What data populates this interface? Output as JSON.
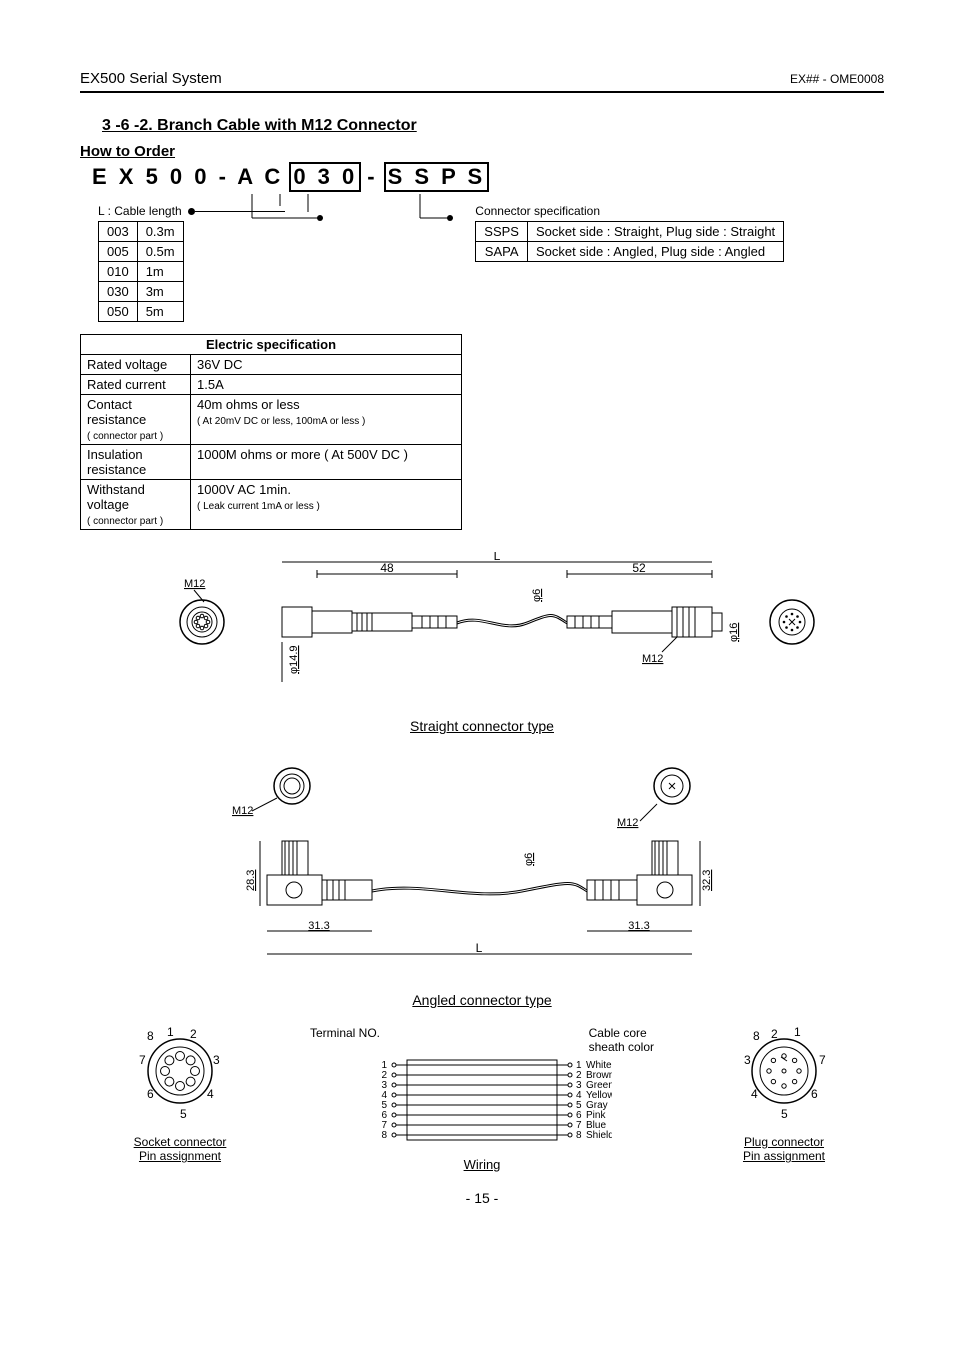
{
  "header": {
    "left": "EX500 Serial System",
    "right": "EX## - OME0008"
  },
  "section_title": "3 -6 -2. Branch Cable with M12 Connector",
  "how_to_order": "How to Order",
  "order_code": {
    "prefix": "E X 5 0 0 - A C",
    "box1": "0 3 0",
    "dash": "-",
    "box2": "S S P S"
  },
  "length_table": {
    "label": "L : Cable length",
    "rows": [
      {
        "code": "003",
        "val": "0.3m"
      },
      {
        "code": "005",
        "val": "0.5m"
      },
      {
        "code": "010",
        "val": "1m"
      },
      {
        "code": "030",
        "val": "3m"
      },
      {
        "code": "050",
        "val": "5m"
      }
    ]
  },
  "conn_table": {
    "label": "Connector specification",
    "rows": [
      {
        "code": "SSPS",
        "val": "Socket side : Straight, Plug side : Straight"
      },
      {
        "code": "SAPA",
        "val": "Socket side : Angled, Plug side : Angled"
      }
    ]
  },
  "spec_table": {
    "title": "Electric specification",
    "rows": [
      {
        "k": "Rated voltage",
        "v": "36V DC"
      },
      {
        "k": "Rated current",
        "v": "1.5A"
      },
      {
        "k": "Contact resistance",
        "ksub": "( connector part )",
        "v": "40m ohms or less",
        "vsub": "( At 20mV DC or less, 100mA or less )"
      },
      {
        "k": "Insulation resistance",
        "v": "1000M ohms or more ( At 500V DC )"
      },
      {
        "k": "Withstand voltage",
        "ksub": "( connector part )",
        "v": "1000V AC 1min.",
        "vsub": "( Leak current 1mA or less )"
      }
    ]
  },
  "diagrams": {
    "straight": {
      "label_L": "L",
      "dim_left": "48",
      "dim_right": "52",
      "m12": "M12",
      "phi6": "φ6",
      "phi149": "φ14.9",
      "phi16": "φ16",
      "caption": "Straight connector type"
    },
    "angled": {
      "m12": "M12",
      "dim283": "28.3",
      "dim313_l": "31.3",
      "dim313_r": "31.3",
      "dim323": "32.3",
      "phi6": "φ6",
      "label_L": "L",
      "caption": "Angled connector type"
    }
  },
  "pins": {
    "socket_caption": "Socket connector\nPin assignment",
    "plug_caption": "Plug connector\nPin assignment",
    "numbers": [
      "1",
      "2",
      "3",
      "4",
      "5",
      "6",
      "7",
      "8"
    ]
  },
  "wiring": {
    "left_label": "Terminal NO.",
    "right_label_1": "Cable core",
    "right_label_2": "sheath color",
    "rows": [
      {
        "n": "1",
        "color": "White"
      },
      {
        "n": "2",
        "color": "Brown"
      },
      {
        "n": "3",
        "color": "Green"
      },
      {
        "n": "4",
        "color": "Yellow"
      },
      {
        "n": "5",
        "color": "Gray"
      },
      {
        "n": "6",
        "color": "Pink"
      },
      {
        "n": "7",
        "color": "Blue"
      },
      {
        "n": "8",
        "color": "Shield"
      }
    ],
    "caption": "Wiring"
  },
  "page_number": "- 15 -"
}
